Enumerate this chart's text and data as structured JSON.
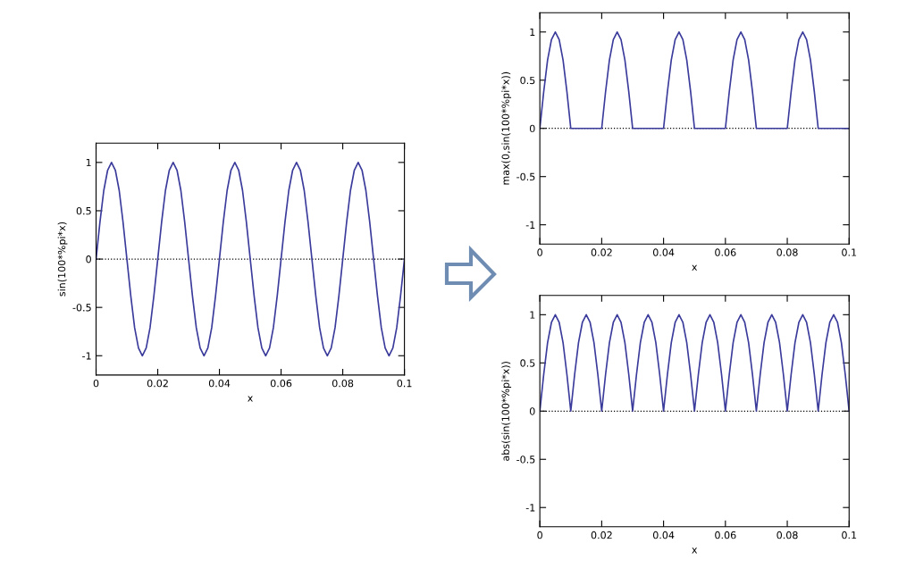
{
  "chart_data": [
    {
      "type": "line",
      "xlabel": "x",
      "ylabel": "sin(100*%pi*x)",
      "xlim": [
        0,
        0.1
      ],
      "ylim": [
        -1.2,
        1.2
      ],
      "xticks": [
        0,
        0.02,
        0.04,
        0.06,
        0.08,
        0.1
      ],
      "yticks": [
        -1,
        -0.5,
        0,
        0.5,
        1
      ],
      "grid": false,
      "line_style": "solid",
      "marker": "none",
      "ref_lines": [
        {
          "axis": "y",
          "value": 0,
          "line_style": "dotted",
          "color": "#000000"
        }
      ],
      "x": [
        0,
        0.00125,
        0.0025,
        0.00375,
        0.005,
        0.00625,
        0.0075,
        0.00875,
        0.01,
        0.01125,
        0.0125,
        0.01375,
        0.015,
        0.01625,
        0.0175,
        0.01875,
        0.02,
        0.02125,
        0.0225,
        0.02375,
        0.025,
        0.02625,
        0.0275,
        0.02875,
        0.03,
        0.03125,
        0.0325,
        0.03375,
        0.035,
        0.03625,
        0.0375,
        0.03875,
        0.04,
        0.04125,
        0.0425,
        0.04375,
        0.045,
        0.04625,
        0.0475,
        0.04875,
        0.05,
        0.05125,
        0.0525,
        0.05375,
        0.055,
        0.05625,
        0.0575,
        0.05875,
        0.06,
        0.06125,
        0.0625,
        0.06375,
        0.065,
        0.06625,
        0.0675,
        0.06875,
        0.07,
        0.07125,
        0.0725,
        0.07375,
        0.075,
        0.07625,
        0.0775,
        0.07875,
        0.08,
        0.08125,
        0.0825,
        0.08375,
        0.085,
        0.08625,
        0.0875,
        0.08875,
        0.09,
        0.09125,
        0.0925,
        0.09375,
        0.095,
        0.09625,
        0.0975,
        0.09875,
        0.1
      ],
      "series": [
        {
          "color": "#3b3b9c",
          "values": [
            0,
            0.38,
            0.71,
            0.92,
            1,
            0.92,
            0.71,
            0.38,
            0,
            -0.38,
            -0.71,
            -0.92,
            -1,
            -0.92,
            -0.71,
            -0.38,
            0,
            0.38,
            0.71,
            0.92,
            1,
            0.92,
            0.71,
            0.38,
            0,
            -0.38,
            -0.71,
            -0.92,
            -1,
            -0.92,
            -0.71,
            -0.38,
            0,
            0.38,
            0.71,
            0.92,
            1,
            0.92,
            0.71,
            0.38,
            0,
            -0.38,
            -0.71,
            -0.92,
            -1,
            -0.92,
            -0.71,
            -0.38,
            0,
            0.38,
            0.71,
            0.92,
            1,
            0.92,
            0.71,
            0.38,
            0,
            -0.38,
            -0.71,
            -0.92,
            -1,
            -0.92,
            -0.71,
            -0.38,
            0,
            0.38,
            0.71,
            0.92,
            1,
            0.92,
            0.71,
            0.38,
            0,
            -0.38,
            -0.71,
            -0.92,
            -1,
            -0.92,
            -0.71,
            -0.38,
            0
          ]
        }
      ]
    },
    {
      "type": "line",
      "xlabel": "x",
      "ylabel": "max(0,sin(100*%pi*x))",
      "xlim": [
        0,
        0.1
      ],
      "ylim": [
        -1.2,
        1.2
      ],
      "xticks": [
        0,
        0.02,
        0.04,
        0.06,
        0.08,
        0.1
      ],
      "yticks": [
        -1,
        -0.5,
        0,
        0.5,
        1
      ],
      "grid": false,
      "line_style": "solid",
      "marker": "none",
      "ref_lines": [
        {
          "axis": "y",
          "value": 0,
          "line_style": "dotted",
          "color": "#000000"
        }
      ],
      "x": [
        0,
        0.00125,
        0.0025,
        0.00375,
        0.005,
        0.00625,
        0.0075,
        0.00875,
        0.01,
        0.01125,
        0.0125,
        0.01375,
        0.015,
        0.01625,
        0.0175,
        0.01875,
        0.02,
        0.02125,
        0.0225,
        0.02375,
        0.025,
        0.02625,
        0.0275,
        0.02875,
        0.03,
        0.03125,
        0.0325,
        0.03375,
        0.035,
        0.03625,
        0.0375,
        0.03875,
        0.04,
        0.04125,
        0.0425,
        0.04375,
        0.045,
        0.04625,
        0.0475,
        0.04875,
        0.05,
        0.05125,
        0.0525,
        0.05375,
        0.055,
        0.05625,
        0.0575,
        0.05875,
        0.06,
        0.06125,
        0.0625,
        0.06375,
        0.065,
        0.06625,
        0.0675,
        0.06875,
        0.07,
        0.07125,
        0.0725,
        0.07375,
        0.075,
        0.07625,
        0.0775,
        0.07875,
        0.08,
        0.08125,
        0.0825,
        0.08375,
        0.085,
        0.08625,
        0.0875,
        0.08875,
        0.09,
        0.09125,
        0.0925,
        0.09375,
        0.095,
        0.09625,
        0.0975,
        0.09875,
        0.1
      ],
      "series": [
        {
          "color": "#3b3b9c",
          "values": [
            0,
            0.38,
            0.71,
            0.92,
            1,
            0.92,
            0.71,
            0.38,
            0,
            0,
            0,
            0,
            0,
            0,
            0,
            0,
            0,
            0.38,
            0.71,
            0.92,
            1,
            0.92,
            0.71,
            0.38,
            0,
            0,
            0,
            0,
            0,
            0,
            0,
            0,
            0,
            0.38,
            0.71,
            0.92,
            1,
            0.92,
            0.71,
            0.38,
            0,
            0,
            0,
            0,
            0,
            0,
            0,
            0,
            0,
            0.38,
            0.71,
            0.92,
            1,
            0.92,
            0.71,
            0.38,
            0,
            0,
            0,
            0,
            0,
            0,
            0,
            0,
            0,
            0.38,
            0.71,
            0.92,
            1,
            0.92,
            0.71,
            0.38,
            0,
            0,
            0,
            0,
            0,
            0,
            0,
            0,
            0
          ]
        }
      ]
    },
    {
      "type": "line",
      "xlabel": "x",
      "ylabel": "abs(sin(100*%pi*x))",
      "xlim": [
        0,
        0.1
      ],
      "ylim": [
        -1.2,
        1.2
      ],
      "xticks": [
        0,
        0.02,
        0.04,
        0.06,
        0.08,
        0.1
      ],
      "yticks": [
        -1,
        -0.5,
        0,
        0.5,
        1
      ],
      "grid": false,
      "line_style": "solid",
      "marker": "none",
      "ref_lines": [
        {
          "axis": "y",
          "value": 0,
          "line_style": "dotted",
          "color": "#000000"
        }
      ],
      "x": [
        0,
        0.00125,
        0.0025,
        0.00375,
        0.005,
        0.00625,
        0.0075,
        0.00875,
        0.01,
        0.01125,
        0.0125,
        0.01375,
        0.015,
        0.01625,
        0.0175,
        0.01875,
        0.02,
        0.02125,
        0.0225,
        0.02375,
        0.025,
        0.02625,
        0.0275,
        0.02875,
        0.03,
        0.03125,
        0.0325,
        0.03375,
        0.035,
        0.03625,
        0.0375,
        0.03875,
        0.04,
        0.04125,
        0.0425,
        0.04375,
        0.045,
        0.04625,
        0.0475,
        0.04875,
        0.05,
        0.05125,
        0.0525,
        0.05375,
        0.055,
        0.05625,
        0.0575,
        0.05875,
        0.06,
        0.06125,
        0.0625,
        0.06375,
        0.065,
        0.06625,
        0.0675,
        0.06875,
        0.07,
        0.07125,
        0.0725,
        0.07375,
        0.075,
        0.07625,
        0.0775,
        0.07875,
        0.08,
        0.08125,
        0.0825,
        0.08375,
        0.085,
        0.08625,
        0.0875,
        0.08875,
        0.09,
        0.09125,
        0.0925,
        0.09375,
        0.095,
        0.09625,
        0.0975,
        0.09875,
        0.1
      ],
      "series": [
        {
          "color": "#3b3b9c",
          "values": [
            0,
            0.38,
            0.71,
            0.92,
            1,
            0.92,
            0.71,
            0.38,
            0,
            0.38,
            0.71,
            0.92,
            1,
            0.92,
            0.71,
            0.38,
            0,
            0.38,
            0.71,
            0.92,
            1,
            0.92,
            0.71,
            0.38,
            0,
            0.38,
            0.71,
            0.92,
            1,
            0.92,
            0.71,
            0.38,
            0,
            0.38,
            0.71,
            0.92,
            1,
            0.92,
            0.71,
            0.38,
            0,
            0.38,
            0.71,
            0.92,
            1,
            0.92,
            0.71,
            0.38,
            0,
            0.38,
            0.71,
            0.92,
            1,
            0.92,
            0.71,
            0.38,
            0,
            0.38,
            0.71,
            0.92,
            1,
            0.92,
            0.71,
            0.38,
            0,
            0.38,
            0.71,
            0.92,
            1,
            0.92,
            0.71,
            0.38,
            0,
            0.38,
            0.71,
            0.92,
            1,
            0.92,
            0.71,
            0.38,
            0
          ]
        }
      ]
    }
  ]
}
